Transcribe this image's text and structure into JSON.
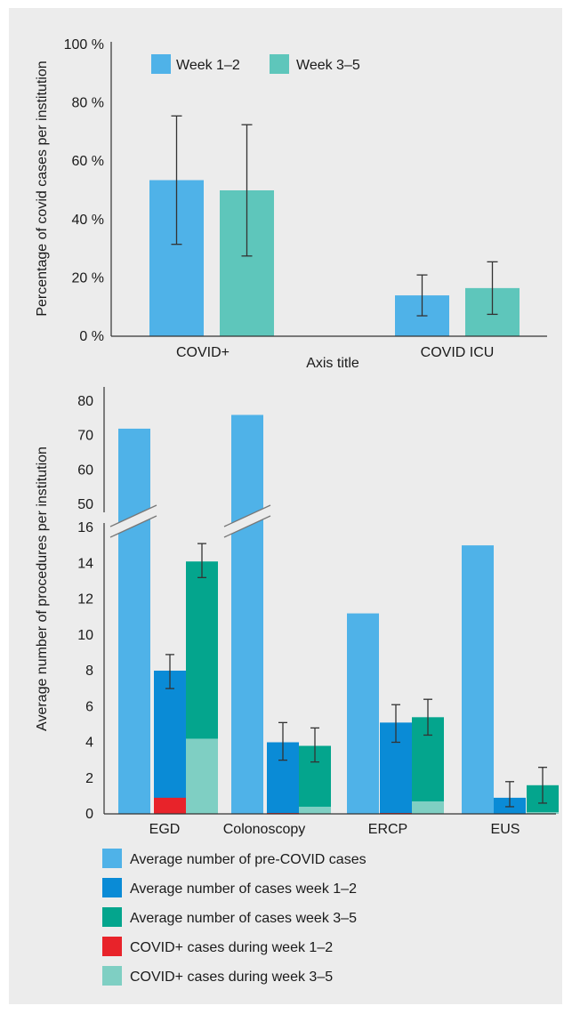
{
  "colors": {
    "pre_covid": "#4fb2e8",
    "week12": "#0a8bd6",
    "week35": "#04a58d",
    "covid_week12": "#e8232a",
    "covid_week35": "#7fcfc3",
    "top_week12": "#4fb2e8",
    "top_week35": "#5ec6bb",
    "panel_bg": "#ececec"
  },
  "chart_data": [
    {
      "type": "bar",
      "categories": [
        "COVID+",
        "COVID ICU"
      ],
      "xlabel": "Axis title",
      "ylabel": "Percentage of covid cases per institution",
      "ylim": [
        0,
        100
      ],
      "yticks": [
        "0 %",
        "20 %",
        "40 %",
        "60 %",
        "80 %",
        "100 %"
      ],
      "legend_position": "top-left",
      "series": [
        {
          "name": "Week 1–2",
          "values": [
            53.5,
            14
          ],
          "error_low": [
            31.5,
            7
          ],
          "error_high": [
            75.5,
            21
          ]
        },
        {
          "name": "Week 3–5",
          "values": [
            50,
            16.5
          ],
          "error_low": [
            27.5,
            7.5
          ],
          "error_high": [
            72.5,
            25.5
          ]
        }
      ]
    },
    {
      "type": "bar",
      "categories": [
        "EGD",
        "Colonoscopy",
        "ERCP",
        "EUS"
      ],
      "ylabel": "Average number of procedures per institution",
      "ylim": [
        0,
        80
      ],
      "axis_break": [
        16,
        50
      ],
      "yticks_lower": [
        "0",
        "2",
        "4",
        "6",
        "8",
        "10",
        "12",
        "14",
        "16"
      ],
      "yticks_upper": [
        "50",
        "60",
        "70",
        "80"
      ],
      "legend_position": "bottom",
      "series": [
        {
          "name": "Average number of pre-COVID cases",
          "values": [
            72,
            76,
            11.2,
            15
          ]
        },
        {
          "name": "Average number of cases week 1–2",
          "values": [
            8,
            4,
            5.1,
            0.9
          ],
          "error_low": [
            7,
            3,
            4,
            0.4
          ],
          "error_high": [
            8.9,
            5.1,
            6.1,
            1.8
          ]
        },
        {
          "name": "Average number of cases week 3–5",
          "values": [
            14.1,
            3.8,
            5.4,
            1.6
          ],
          "error_low": [
            13.2,
            2.9,
            4.4,
            0.6
          ],
          "error_high": [
            15.1,
            4.8,
            6.4,
            2.6
          ]
        },
        {
          "name": "COVID+ cases during week 1–2",
          "values": [
            0.9,
            0.05,
            0.05,
            0
          ]
        },
        {
          "name": "COVID+ cases during week 3–5",
          "values": [
            4.2,
            0.4,
            0.7,
            0.1
          ]
        }
      ]
    }
  ]
}
